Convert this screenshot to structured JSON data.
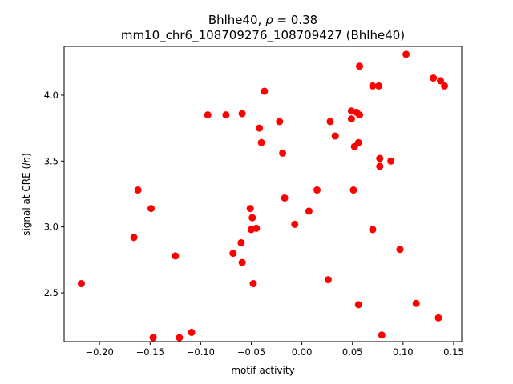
{
  "chart_data": {
    "type": "scatter",
    "title_line1_prefix": "Bhlhe40, ",
    "title_line1_symbol": "ρ",
    "title_line1_suffix": " = 0.38",
    "title_line2": "mm10_chr6_108709276_108709427 (Bhlhe40)",
    "xlabel": "motif activity",
    "ylabel_prefix": "signal at CRE (",
    "ylabel_italic": "ln",
    "ylabel_suffix": ")",
    "xlim": [
      -0.235,
      0.158
    ],
    "ylim": [
      2.13,
      4.37
    ],
    "xticks": [
      -0.2,
      -0.15,
      -0.1,
      -0.05,
      0.0,
      0.05,
      0.1,
      0.15
    ],
    "xtick_labels": [
      "−0.20",
      "−0.15",
      "−0.10",
      "−0.05",
      "0.00",
      "0.05",
      "0.10",
      "0.15"
    ],
    "yticks": [
      2.5,
      3.0,
      3.5,
      4.0
    ],
    "ytick_labels": [
      "2.5",
      "3.0",
      "3.5",
      "4.0"
    ],
    "marker_color": "#ff0000",
    "grid": false,
    "points": [
      {
        "x": -0.218,
        "y": 2.57
      },
      {
        "x": -0.166,
        "y": 2.92
      },
      {
        "x": -0.162,
        "y": 3.28
      },
      {
        "x": -0.149,
        "y": 3.14
      },
      {
        "x": -0.147,
        "y": 2.16
      },
      {
        "x": -0.125,
        "y": 2.78
      },
      {
        "x": -0.121,
        "y": 2.16
      },
      {
        "x": -0.109,
        "y": 2.2
      },
      {
        "x": -0.093,
        "y": 3.85
      },
      {
        "x": -0.075,
        "y": 3.85
      },
      {
        "x": -0.068,
        "y": 2.8
      },
      {
        "x": -0.059,
        "y": 3.86
      },
      {
        "x": -0.06,
        "y": 2.88
      },
      {
        "x": -0.059,
        "y": 2.73
      },
      {
        "x": -0.051,
        "y": 3.14
      },
      {
        "x": -0.049,
        "y": 3.07
      },
      {
        "x": -0.05,
        "y": 2.98
      },
      {
        "x": -0.045,
        "y": 2.99
      },
      {
        "x": -0.048,
        "y": 2.57
      },
      {
        "x": -0.042,
        "y": 3.75
      },
      {
        "x": -0.04,
        "y": 3.64
      },
      {
        "x": -0.037,
        "y": 4.03
      },
      {
        "x": -0.022,
        "y": 3.8
      },
      {
        "x": -0.019,
        "y": 3.56
      },
      {
        "x": -0.017,
        "y": 3.22
      },
      {
        "x": -0.007,
        "y": 3.02
      },
      {
        "x": 0.007,
        "y": 3.12
      },
      {
        "x": 0.015,
        "y": 3.28
      },
      {
        "x": 0.026,
        "y": 2.6
      },
      {
        "x": 0.028,
        "y": 3.8
      },
      {
        "x": 0.033,
        "y": 3.69
      },
      {
        "x": 0.049,
        "y": 3.88
      },
      {
        "x": 0.049,
        "y": 3.82
      },
      {
        "x": 0.052,
        "y": 3.61
      },
      {
        "x": 0.051,
        "y": 3.28
      },
      {
        "x": 0.054,
        "y": 3.87
      },
      {
        "x": 0.057,
        "y": 3.85
      },
      {
        "x": 0.056,
        "y": 3.64
      },
      {
        "x": 0.057,
        "y": 4.22
      },
      {
        "x": 0.056,
        "y": 2.41
      },
      {
        "x": 0.07,
        "y": 4.07
      },
      {
        "x": 0.07,
        "y": 2.98
      },
      {
        "x": 0.076,
        "y": 4.07
      },
      {
        "x": 0.077,
        "y": 3.52
      },
      {
        "x": 0.077,
        "y": 3.46
      },
      {
        "x": 0.079,
        "y": 2.18
      },
      {
        "x": 0.088,
        "y": 3.5
      },
      {
        "x": 0.097,
        "y": 2.83
      },
      {
        "x": 0.103,
        "y": 4.31
      },
      {
        "x": 0.113,
        "y": 2.42
      },
      {
        "x": 0.13,
        "y": 4.13
      },
      {
        "x": 0.135,
        "y": 2.31
      },
      {
        "x": 0.137,
        "y": 4.11
      },
      {
        "x": 0.141,
        "y": 4.07
      }
    ]
  }
}
